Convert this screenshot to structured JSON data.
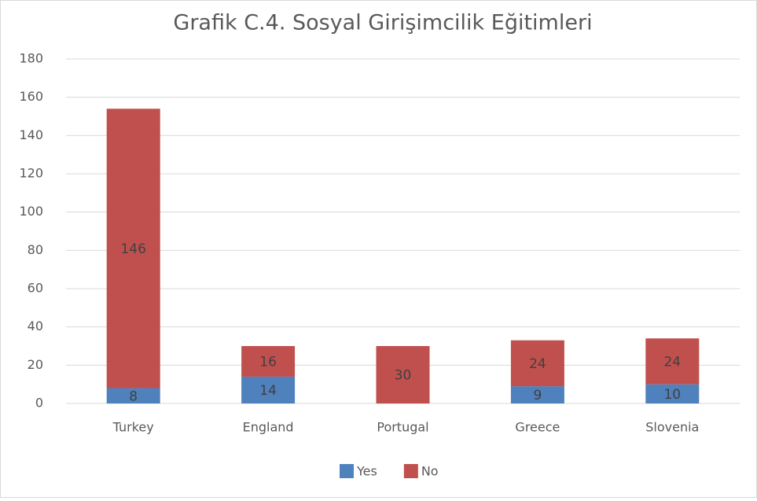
{
  "chart_data": {
    "type": "stacked_bar",
    "title": "Grafik C.4. Sosyal Girişimcilik Eğitimleri",
    "categories": [
      "Turkey",
      "England",
      "Portugal",
      "Greece",
      "Slovenia"
    ],
    "series": [
      {
        "name": "Yes",
        "color": "#4f81bd",
        "values": [
          8,
          14,
          0,
          9,
          10
        ]
      },
      {
        "name": "No",
        "color": "#c0504d",
        "values": [
          146,
          16,
          30,
          24,
          24
        ]
      }
    ],
    "ylim": [
      0,
      180
    ],
    "yticks": [
      0,
      20,
      40,
      60,
      80,
      100,
      120,
      140,
      160,
      180
    ],
    "grid": true,
    "legend": "bottom"
  }
}
